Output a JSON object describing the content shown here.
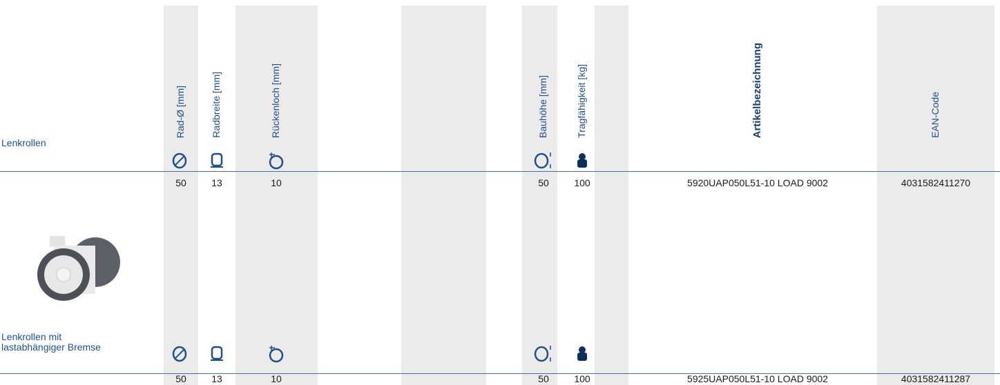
{
  "columns": [
    "Rad-Ø [mm]",
    "Radbreite [mm]",
    "Rückenloch [mm]",
    "Bauhöhe [mm]",
    "Tragfähigkeit [kg]",
    "Artikelbezeichnung",
    "EAN-Code"
  ],
  "groups": [
    {
      "name": "Lenkrollen",
      "rows": [
        [
          50,
          13,
          10,
          50,
          100,
          "5920UAP050L51-10 LOAD 9002",
          "4031582411270"
        ]
      ]
    },
    {
      "name": "Lenkrollen mit\nlastabhängiger Bremse",
      "rows": [
        [
          50,
          13,
          10,
          50,
          100,
          "5925UAP050L51-10 LOAD 9002",
          "4031582411287"
        ]
      ]
    }
  ]
}
